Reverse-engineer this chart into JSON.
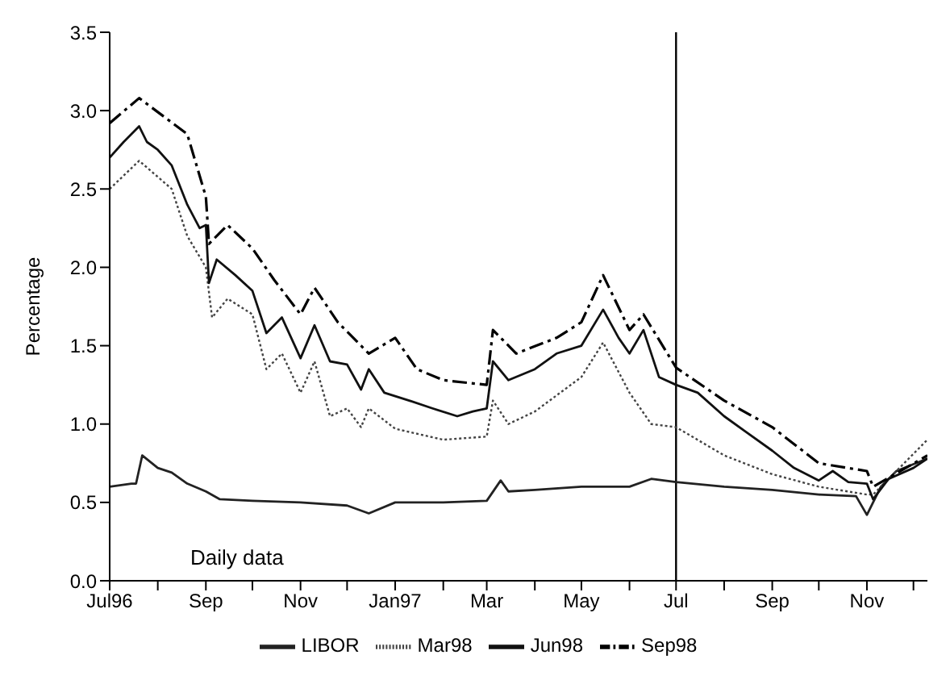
{
  "chart_data": {
    "type": "line",
    "ylabel": "Percentage",
    "annotations": [
      "Daily data"
    ],
    "xlim": [
      "1996-07-01",
      "1997-12-10"
    ],
    "xticks": [
      {
        "value": "1996-07-01",
        "label": "Jul96"
      },
      {
        "value": "1996-08-01",
        "label": null
      },
      {
        "value": "1996-09-01",
        "label": "Sep"
      },
      {
        "value": "1996-10-01",
        "label": null
      },
      {
        "value": "1996-11-01",
        "label": "Nov"
      },
      {
        "value": "1996-12-01",
        "label": null
      },
      {
        "value": "1997-01-01",
        "label": "Jan97"
      },
      {
        "value": "1997-02-01",
        "label": null
      },
      {
        "value": "1997-03-01",
        "label": "Mar"
      },
      {
        "value": "1997-04-01",
        "label": null
      },
      {
        "value": "1997-05-01",
        "label": "May"
      },
      {
        "value": "1997-06-01",
        "label": null
      },
      {
        "value": "1997-07-01",
        "label": "Jul"
      },
      {
        "value": "1997-08-01",
        "label": null
      },
      {
        "value": "1997-09-01",
        "label": "Sep"
      },
      {
        "value": "1997-10-01",
        "label": null
      },
      {
        "value": "1997-11-01",
        "label": "Nov"
      },
      {
        "value": "1997-12-01",
        "label": null
      }
    ],
    "ylim": [
      0,
      3.5
    ],
    "yticks": [
      {
        "value": 0,
        "label": "0.0"
      },
      {
        "value": 0.5,
        "label": "0.5"
      },
      {
        "value": 1,
        "label": "1.0"
      },
      {
        "value": 1.5,
        "label": "1.5"
      },
      {
        "value": 2,
        "label": "2.0"
      },
      {
        "value": 2.5,
        "label": "2.5"
      },
      {
        "value": 3,
        "label": "3.0"
      },
      {
        "value": 3.5,
        "label": "3.5"
      }
    ],
    "legend": "bottom",
    "marker": "none",
    "ref_lines": [
      {
        "axis": "x",
        "value": "1997-07-01",
        "color": "#000000"
      }
    ],
    "series": [
      {
        "name": "LIBOR",
        "color": "#222222",
        "line_style": "solid",
        "x": [
          "1996-07-01",
          "1996-07-15",
          "1996-07-18",
          "1996-07-22",
          "1996-08-01",
          "1996-08-10",
          "1996-08-20",
          "1996-09-01",
          "1996-09-10",
          "1996-10-01",
          "1996-11-01",
          "1996-12-01",
          "1996-12-15",
          "1997-01-01",
          "1997-02-01",
          "1997-03-01",
          "1997-03-10",
          "1997-03-15",
          "1997-04-01",
          "1997-05-01",
          "1997-06-01",
          "1997-06-15",
          "1997-07-01",
          "1997-08-01",
          "1997-09-01",
          "1997-10-01",
          "1997-10-25",
          "1997-11-01",
          "1997-11-10",
          "1997-11-20",
          "1997-12-10"
        ],
        "values": [
          0.6,
          0.62,
          0.62,
          0.8,
          0.72,
          0.69,
          0.62,
          0.57,
          0.52,
          0.51,
          0.5,
          0.48,
          0.43,
          0.5,
          0.5,
          0.51,
          0.64,
          0.57,
          0.58,
          0.6,
          0.6,
          0.65,
          0.63,
          0.6,
          0.58,
          0.55,
          0.54,
          0.42,
          0.6,
          0.7,
          0.78
        ]
      },
      {
        "name": "Mar98",
        "color": "#444444",
        "line_style": "dotted",
        "x": [
          "1996-07-01",
          "1996-07-20",
          "1996-08-10",
          "1996-08-20",
          "1996-09-01",
          "1996-09-05",
          "1996-09-15",
          "1996-10-01",
          "1996-10-10",
          "1996-10-20",
          "1996-11-01",
          "1996-11-10",
          "1996-11-20",
          "1996-12-01",
          "1996-12-10",
          "1996-12-15",
          "1997-01-01",
          "1997-02-01",
          "1997-03-01",
          "1997-03-05",
          "1997-03-15",
          "1997-04-01",
          "1997-05-01",
          "1997-05-15",
          "1997-06-01",
          "1997-06-15",
          "1997-07-01",
          "1997-08-01",
          "1997-09-01",
          "1997-10-01",
          "1997-11-01",
          "1997-11-05",
          "1997-12-10"
        ],
        "values": [
          2.5,
          2.68,
          2.5,
          2.2,
          2.0,
          1.68,
          1.8,
          1.7,
          1.35,
          1.45,
          1.2,
          1.4,
          1.05,
          1.1,
          0.98,
          1.1,
          0.97,
          0.9,
          0.92,
          1.15,
          1.0,
          1.08,
          1.3,
          1.52,
          1.2,
          1.0,
          0.98,
          0.8,
          0.68,
          0.6,
          0.55,
          0.55,
          0.9
        ]
      },
      {
        "name": "Jun98",
        "color": "#111111",
        "line_style": "solid",
        "x": [
          "1996-07-01",
          "1996-07-10",
          "1996-07-20",
          "1996-07-25",
          "1996-08-01",
          "1996-08-10",
          "1996-08-20",
          "1996-08-28",
          "1996-09-01",
          "1996-09-03",
          "1996-09-08",
          "1996-09-20",
          "1996-10-01",
          "1996-10-10",
          "1996-10-20",
          "1996-11-01",
          "1996-11-10",
          "1996-11-20",
          "1996-12-01",
          "1996-12-10",
          "1996-12-15",
          "1996-12-25",
          "1997-01-10",
          "1997-01-25",
          "1997-02-10",
          "1997-02-20",
          "1997-03-01",
          "1997-03-05",
          "1997-03-15",
          "1997-04-01",
          "1997-04-15",
          "1997-05-01",
          "1997-05-15",
          "1997-05-25",
          "1997-06-01",
          "1997-06-10",
          "1997-06-20",
          "1997-07-01",
          "1997-07-15",
          "1997-08-01",
          "1997-08-15",
          "1997-09-01",
          "1997-09-15",
          "1997-10-01",
          "1997-10-10",
          "1997-10-20",
          "1997-11-01",
          "1997-11-05",
          "1997-11-15",
          "1997-12-01",
          "1997-12-10"
        ],
        "values": [
          2.7,
          2.8,
          2.9,
          2.8,
          2.75,
          2.65,
          2.4,
          2.25,
          2.27,
          1.9,
          2.05,
          1.95,
          1.85,
          1.58,
          1.68,
          1.42,
          1.63,
          1.4,
          1.38,
          1.22,
          1.35,
          1.2,
          1.15,
          1.1,
          1.05,
          1.08,
          1.1,
          1.4,
          1.28,
          1.35,
          1.45,
          1.5,
          1.73,
          1.55,
          1.45,
          1.6,
          1.3,
          1.25,
          1.2,
          1.05,
          0.95,
          0.83,
          0.72,
          0.64,
          0.7,
          0.63,
          0.62,
          0.52,
          0.65,
          0.72,
          0.78
        ]
      },
      {
        "name": "Sep98",
        "color": "#000000",
        "line_style": "dashed",
        "x": [
          "1996-07-01",
          "1996-07-20",
          "1996-08-20",
          "1996-09-01",
          "1996-09-03",
          "1996-09-15",
          "1996-10-01",
          "1996-10-15",
          "1996-11-01",
          "1996-11-10",
          "1996-11-25",
          "1996-12-15",
          "1997-01-01",
          "1997-01-15",
          "1997-02-01",
          "1997-03-01",
          "1997-03-05",
          "1997-03-20",
          "1997-04-15",
          "1997-05-01",
          "1997-05-15",
          "1997-06-01",
          "1997-06-10",
          "1997-07-01",
          "1997-08-01",
          "1997-09-01",
          "1997-10-01",
          "1997-11-01",
          "1997-11-05",
          "1997-12-10"
        ],
        "values": [
          2.92,
          3.08,
          2.85,
          2.45,
          2.15,
          2.27,
          2.12,
          1.92,
          1.7,
          1.87,
          1.65,
          1.45,
          1.55,
          1.35,
          1.28,
          1.25,
          1.6,
          1.45,
          1.55,
          1.65,
          1.95,
          1.6,
          1.7,
          1.36,
          1.15,
          0.98,
          0.75,
          0.7,
          0.6,
          0.8
        ]
      }
    ]
  }
}
